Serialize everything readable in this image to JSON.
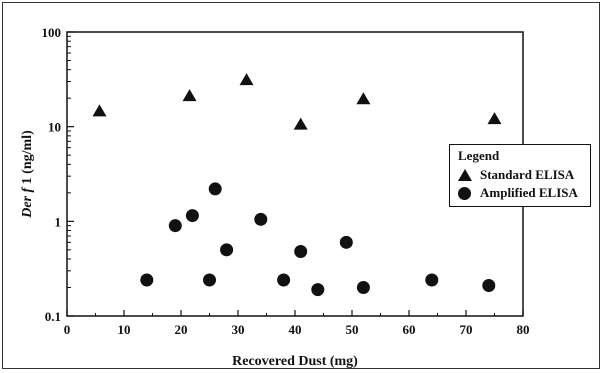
{
  "chart_data": {
    "type": "scatter",
    "xlabel": "Recovered Dust (mg)",
    "ylabel_italic": "Der f",
    "ylabel_rest": " 1 (ng/ml)",
    "xlim": [
      0,
      80
    ],
    "ylim": [
      0.1,
      100
    ],
    "y_scale": "log",
    "x_ticks": [
      0,
      10,
      20,
      30,
      40,
      50,
      60,
      70,
      80
    ],
    "y_ticks": [
      {
        "value": 0.1,
        "label": "0.1"
      },
      {
        "value": 1,
        "label": "1"
      },
      {
        "value": 10,
        "label": "10"
      },
      {
        "value": 100,
        "label": "100"
      }
    ],
    "grid": false,
    "legend_position": "right",
    "legend_title": "Legend",
    "series": [
      {
        "name": "Standard ELISA",
        "marker": "triangle",
        "color": "#111111",
        "points": [
          {
            "x": 5.7,
            "y": 14.5
          },
          {
            "x": 21.5,
            "y": 21
          },
          {
            "x": 31.5,
            "y": 31
          },
          {
            "x": 41,
            "y": 10.5
          },
          {
            "x": 52,
            "y": 19.5
          },
          {
            "x": 75,
            "y": 12
          }
        ]
      },
      {
        "name": "Amplified ELISA",
        "marker": "circle",
        "color": "#111111",
        "points": [
          {
            "x": 14,
            "y": 0.24
          },
          {
            "x": 19,
            "y": 0.9
          },
          {
            "x": 22,
            "y": 1.15
          },
          {
            "x": 25,
            "y": 0.24
          },
          {
            "x": 26,
            "y": 2.2
          },
          {
            "x": 28,
            "y": 0.5
          },
          {
            "x": 34,
            "y": 1.05
          },
          {
            "x": 38,
            "y": 0.24
          },
          {
            "x": 41,
            "y": 0.48
          },
          {
            "x": 44,
            "y": 0.19
          },
          {
            "x": 49,
            "y": 0.6
          },
          {
            "x": 52,
            "y": 0.2
          },
          {
            "x": 64,
            "y": 0.24
          },
          {
            "x": 74,
            "y": 0.21
          }
        ]
      }
    ]
  }
}
